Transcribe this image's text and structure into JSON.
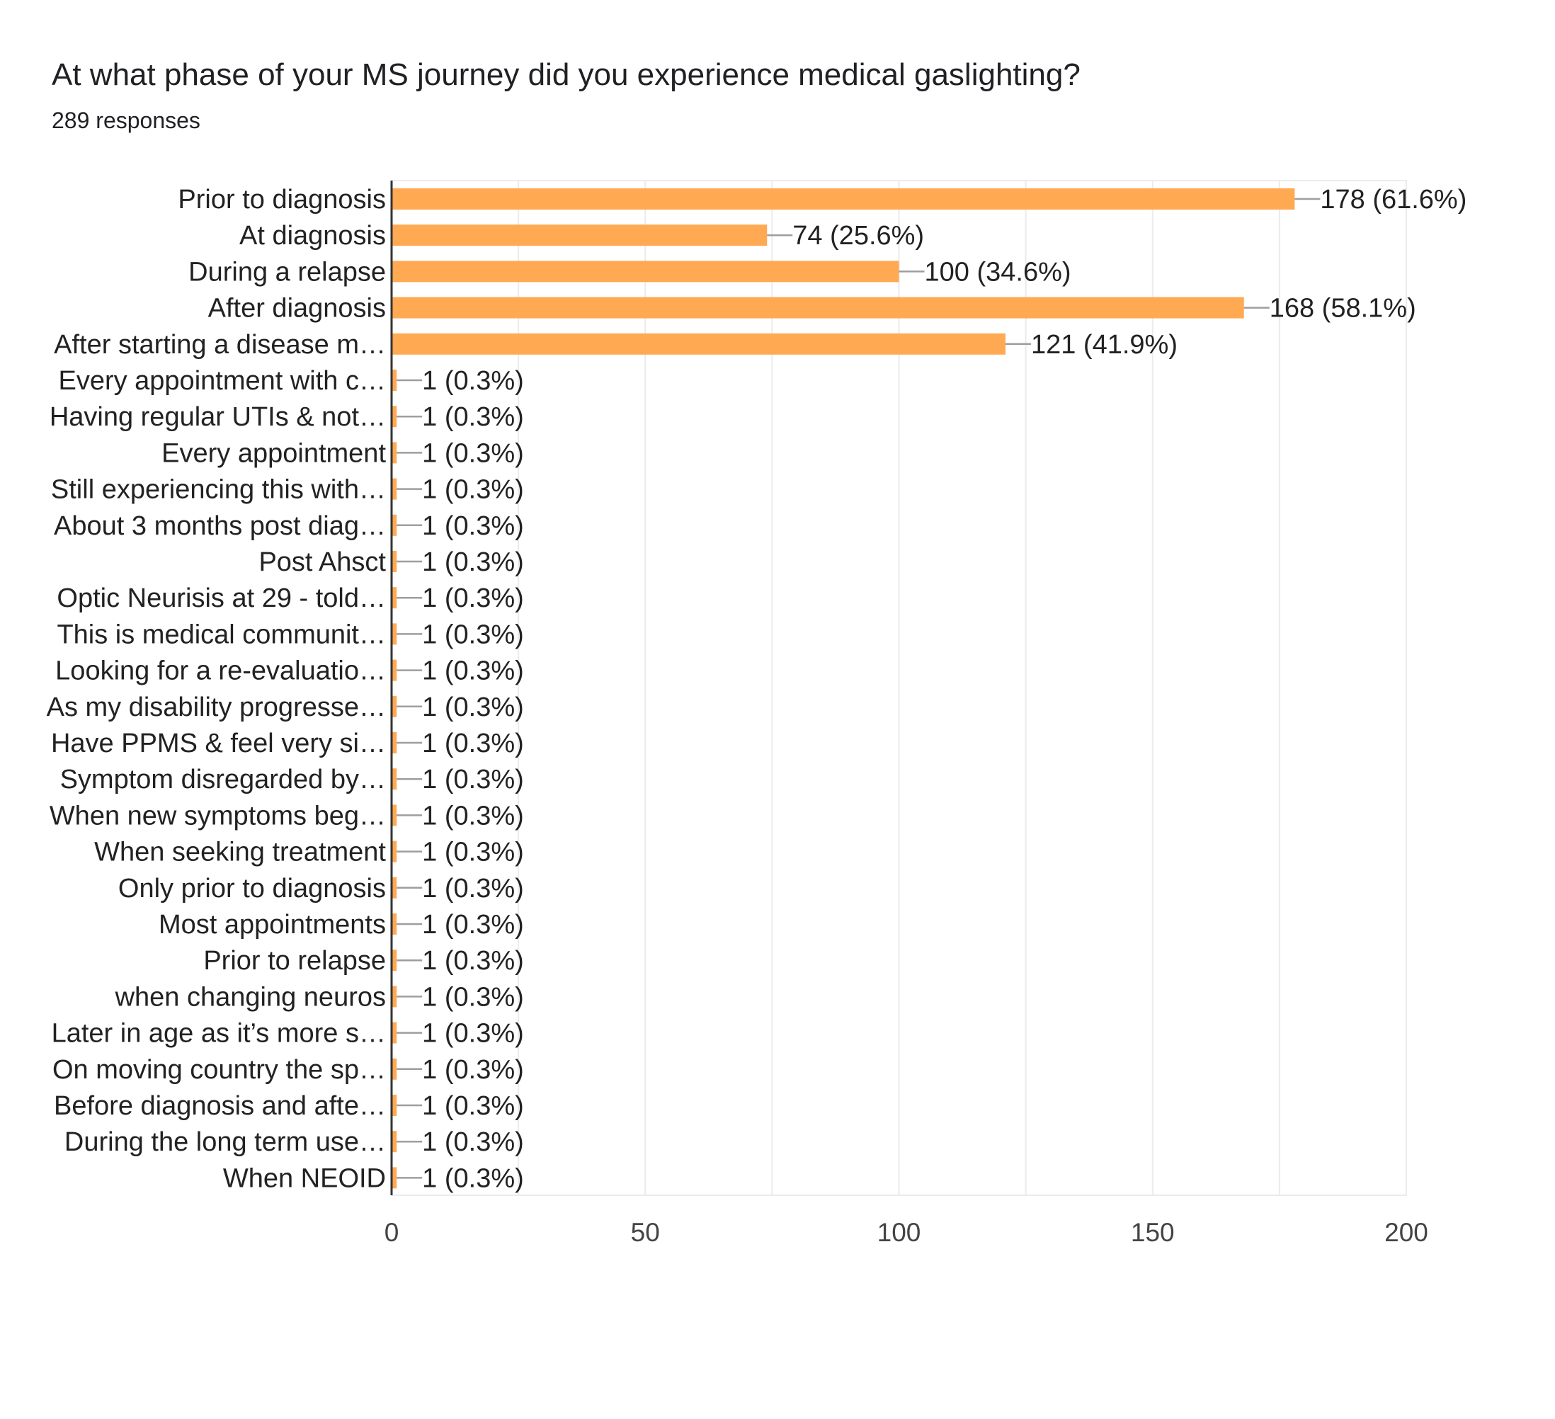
{
  "header": {
    "title": "At what phase of your MS journey did you experience medical gaslighting?",
    "responses": "289 responses"
  },
  "colors": {
    "bar": "#ffa953",
    "axis": "#333333",
    "grid": "#ebebeb",
    "leader": "#9e9e9e"
  },
  "chart_data": {
    "type": "bar",
    "orientation": "horizontal",
    "title": "At what phase of your MS journey did you experience medical gaslighting?",
    "subtitle": "289 responses",
    "categories": [
      "Prior to diagnosis",
      "At diagnosis",
      "During a relapse",
      "After diagnosis",
      "After starting a disease m…",
      "Every appointment with c…",
      "Having regular UTIs & not…",
      "Every appointment",
      "Still experiencing this with…",
      "About 3 months post diag…",
      "Post Ahsct",
      "Optic Neurisis at 29 - told…",
      "This is medical communit…",
      "Looking for a re-evaluatio…",
      "As my disability progresse…",
      "Have PPMS & feel very si…",
      "Symptom disregarded by…",
      "When new symptoms beg…",
      "When seeking treatment",
      "Only prior to diagnosis",
      "Most appointments",
      "Prior to relapse",
      "when changing neuros",
      "Later in age as it’s more s…",
      "On moving country the sp…",
      "Before diagnosis and afte…",
      "During the long term use…",
      "When NEOID"
    ],
    "values": [
      178,
      74,
      100,
      168,
      121,
      1,
      1,
      1,
      1,
      1,
      1,
      1,
      1,
      1,
      1,
      1,
      1,
      1,
      1,
      1,
      1,
      1,
      1,
      1,
      1,
      1,
      1,
      1
    ],
    "value_labels": [
      "178 (61.6%)",
      "74 (25.6%)",
      "100 (34.6%)",
      "168 (58.1%)",
      "121 (41.9%)",
      "1 (0.3%)",
      "1 (0.3%)",
      "1 (0.3%)",
      "1 (0.3%)",
      "1 (0.3%)",
      "1 (0.3%)",
      "1 (0.3%)",
      "1 (0.3%)",
      "1 (0.3%)",
      "1 (0.3%)",
      "1 (0.3%)",
      "1 (0.3%)",
      "1 (0.3%)",
      "1 (0.3%)",
      "1 (0.3%)",
      "1 (0.3%)",
      "1 (0.3%)",
      "1 (0.3%)",
      "1 (0.3%)",
      "1 (0.3%)",
      "1 (0.3%)",
      "1 (0.3%)",
      "1 (0.3%)"
    ],
    "xlim": [
      0,
      200
    ],
    "x_ticks": [
      0,
      50,
      100,
      150,
      200
    ],
    "grid": true,
    "legend": "none"
  }
}
